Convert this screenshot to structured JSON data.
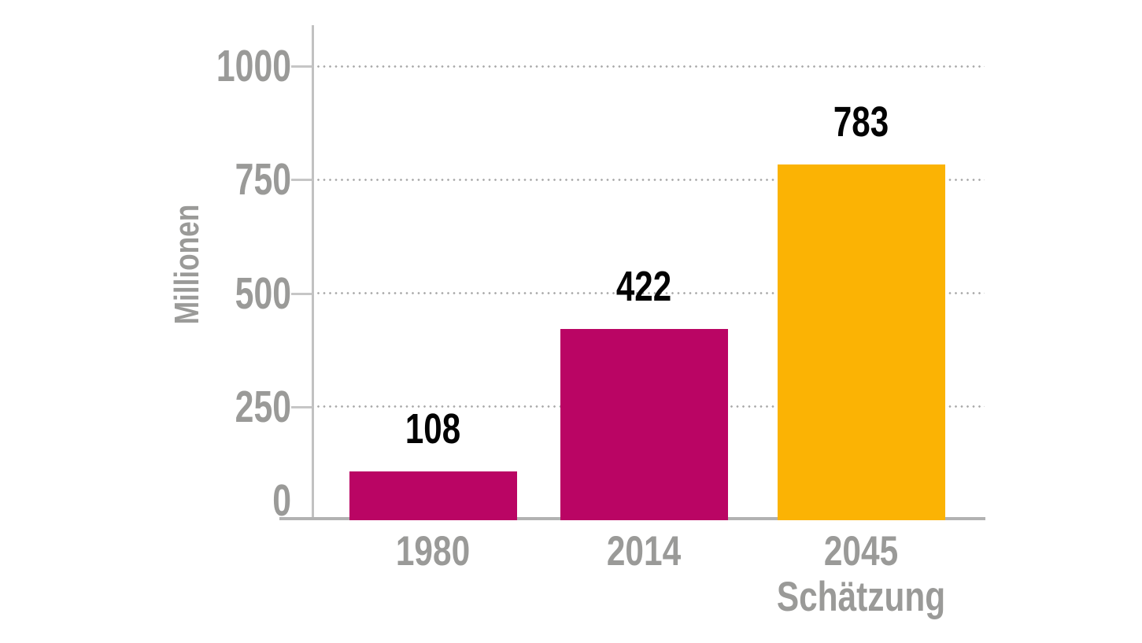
{
  "chart_data": {
    "type": "bar",
    "title": "",
    "xlabel": "",
    "ylabel": "Millionen",
    "categories": [
      "1980",
      "2014",
      "2045"
    ],
    "category_sublabels": [
      "",
      "",
      "Schätzung"
    ],
    "values": [
      108,
      422,
      783
    ],
    "value_labels": [
      "108",
      "422",
      "783"
    ],
    "bar_colors": [
      "#BA0564",
      "#BA0564",
      "#FBB304"
    ],
    "yticks": [
      0,
      250,
      500,
      750,
      1000
    ],
    "ylim": [
      0,
      1000
    ],
    "grid": "horizontal dotted lines at 250/500/750/1000, hidden behind bars",
    "legend": "none",
    "colors": {
      "bar_magenta": "#BA0564",
      "bar_yellow": "#FBB304",
      "axis_text": "#9A9A98",
      "value_text": "#030303",
      "axis_line": "#B2B2B2",
      "grid_dot": "#A8A8A8",
      "background": "#FFFFFF"
    }
  }
}
